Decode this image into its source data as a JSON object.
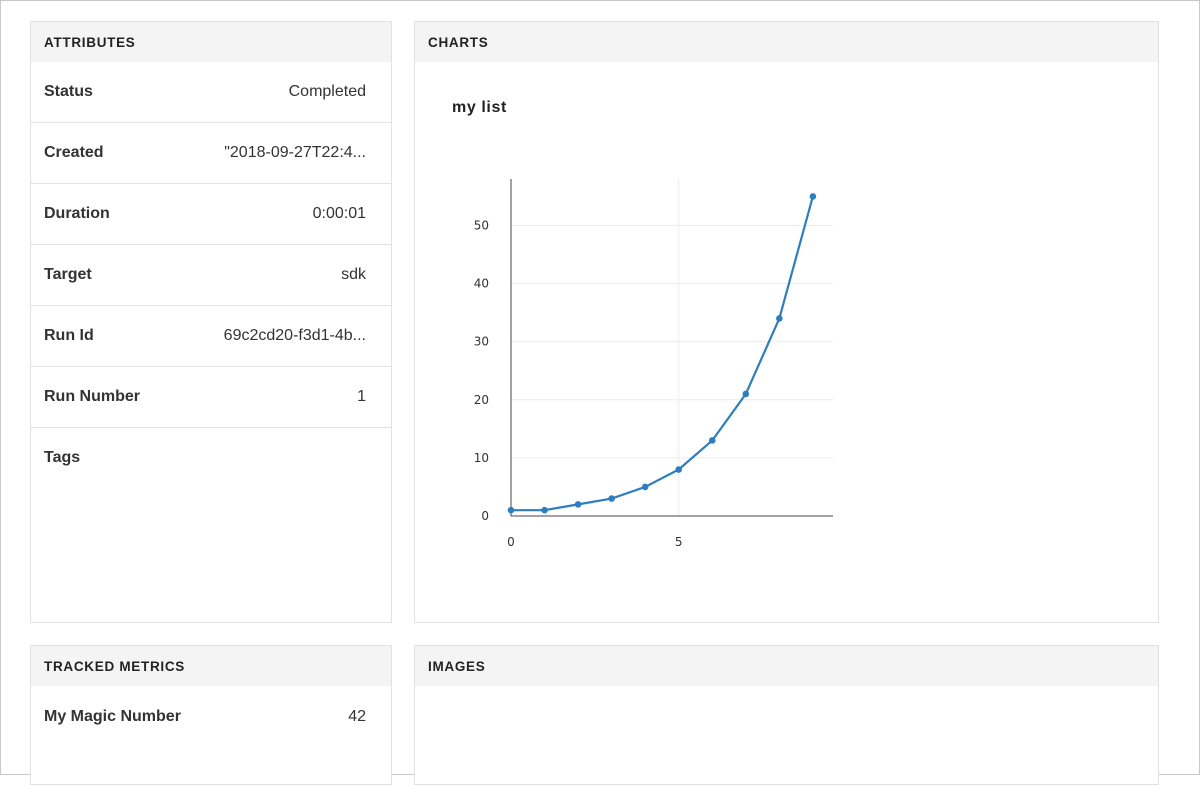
{
  "attributes": {
    "header": "ATTRIBUTES",
    "rows": [
      {
        "key": "Status",
        "value": "Completed"
      },
      {
        "key": "Created",
        "value": "\"2018-09-27T22:4..."
      },
      {
        "key": "Duration",
        "value": "0:00:01"
      },
      {
        "key": "Target",
        "value": "sdk"
      },
      {
        "key": "Run Id",
        "value": "69c2cd20-f3d1-4b..."
      },
      {
        "key": "Run Number",
        "value": "1"
      },
      {
        "key": "Tags",
        "value": ""
      }
    ]
  },
  "charts": {
    "header": "CHARTS",
    "chart_title": "my list"
  },
  "chart_data": {
    "type": "line",
    "title": "my list",
    "xlabel": "",
    "ylabel": "",
    "x": [
      0,
      1,
      2,
      3,
      4,
      5,
      6,
      7,
      8,
      9
    ],
    "series": [
      {
        "values": [
          1,
          1,
          2,
          3,
          5,
          8,
          13,
          21,
          34,
          55
        ]
      }
    ],
    "xlim": [
      0,
      9.6
    ],
    "ylim": [
      0,
      58
    ],
    "xticks": [
      0,
      5
    ],
    "yticks": [
      0,
      10,
      20,
      30,
      40,
      50
    ],
    "grid": true,
    "color": "#2e7ebf"
  },
  "metrics": {
    "header": "TRACKED METRICS",
    "rows": [
      {
        "key": "My Magic Number",
        "value": "42"
      }
    ]
  },
  "images": {
    "header": "IMAGES"
  }
}
